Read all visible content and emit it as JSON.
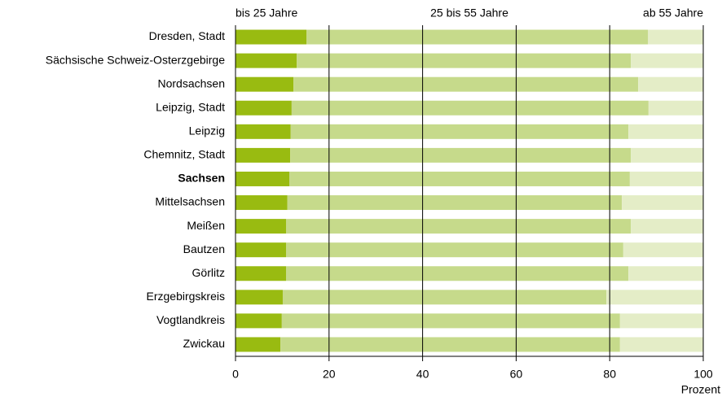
{
  "chart_data": {
    "type": "stacked_barh",
    "xlabel": "Prozent",
    "categories": [
      "Dresden, Stadt",
      "Sächsische Schweiz-Osterzgebirge",
      "Nordsachsen",
      "Leipzig, Stadt",
      "Leipzig",
      "Chemnitz, Stadt",
      "Sachsen",
      "Mittelsachsen",
      "Meißen",
      "Bautzen",
      "Görlitz",
      "Erzgebirgskreis",
      "Vogtlandkreis",
      "Zwickau"
    ],
    "highlight_category": "Sachsen",
    "series": [
      {
        "name": "bis 25 Jahre",
        "color": "#99bb11",
        "values": [
          15.2,
          13.1,
          12.4,
          12.0,
          11.8,
          11.7,
          11.5,
          11.1,
          10.8,
          10.8,
          10.8,
          10.1,
          9.9,
          9.6
        ]
      },
      {
        "name": "25 bis 55 Jahre",
        "color": "#c6da8b",
        "values": [
          73.0,
          71.4,
          73.7,
          76.3,
          72.2,
          72.8,
          72.8,
          71.5,
          73.7,
          72.1,
          73.2,
          69.2,
          72.3,
          72.6
        ]
      },
      {
        "name": "ab 55 Jahre",
        "color": "#e4edc7",
        "values": [
          11.8,
          15.5,
          13.9,
          11.7,
          16.0,
          15.5,
          15.7,
          17.4,
          15.5,
          17.1,
          16.0,
          20.7,
          17.8,
          17.8
        ]
      }
    ],
    "xlim": [
      0,
      100
    ],
    "xticks": [
      0,
      20,
      40,
      60,
      80,
      100
    ],
    "grid": true
  }
}
